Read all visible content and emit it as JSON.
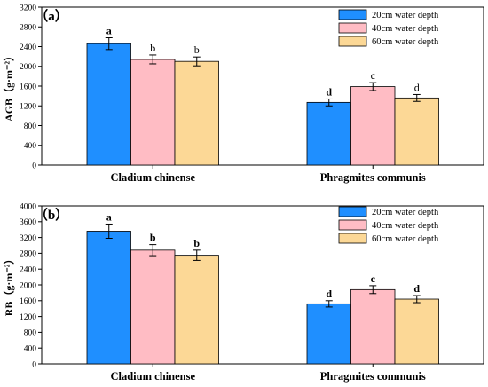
{
  "colors": {
    "s1": "#1f8fff",
    "s2": "#ffbcc4",
    "s3": "#fcd896"
  },
  "chart_data": [
    {
      "type": "bar",
      "panel_label": "（a）",
      "ylabel": "AGB（g·m⁻²）",
      "ylim": [
        0,
        3200
      ],
      "yticks": [
        0,
        400,
        800,
        1200,
        1600,
        2000,
        2400,
        2800,
        3200
      ],
      "categories": [
        "Cladium chinense",
        "Phragmites communis"
      ],
      "legend_position": "top-right",
      "grid": false,
      "series": [
        {
          "name": "20cm water depth",
          "values": [
            2460,
            1270
          ],
          "errors": [
            120,
            70
          ],
          "labels": [
            "a",
            "d"
          ]
        },
        {
          "name": "40cm water depth",
          "values": [
            2140,
            1590
          ],
          "errors": [
            90,
            80
          ],
          "labels": [
            "b",
            "c"
          ]
        },
        {
          "name": "60cm water depth",
          "values": [
            2100,
            1360
          ],
          "errors": [
            90,
            70
          ],
          "labels": [
            "b",
            "d"
          ]
        }
      ]
    },
    {
      "type": "bar",
      "panel_label": "（b）",
      "ylabel": "RB（g·m⁻²）",
      "ylim": [
        0,
        4000
      ],
      "yticks": [
        0,
        400,
        800,
        1200,
        1600,
        2000,
        2400,
        2800,
        3200,
        3600,
        4000
      ],
      "categories": [
        "Cladium chinense",
        "Phragmites communis"
      ],
      "legend_position": "top-right",
      "grid": false,
      "series": [
        {
          "name": "20cm water depth",
          "values": [
            3360,
            1520
          ],
          "errors": [
            180,
            80
          ],
          "labels": [
            "a",
            "d"
          ]
        },
        {
          "name": "40cm water depth",
          "values": [
            2880,
            1880
          ],
          "errors": [
            140,
            100
          ],
          "labels": [
            "b",
            "c"
          ]
        },
        {
          "name": "60cm water depth",
          "values": [
            2750,
            1640
          ],
          "errors": [
            130,
            90
          ],
          "labels": [
            "b",
            "d"
          ]
        }
      ]
    }
  ]
}
